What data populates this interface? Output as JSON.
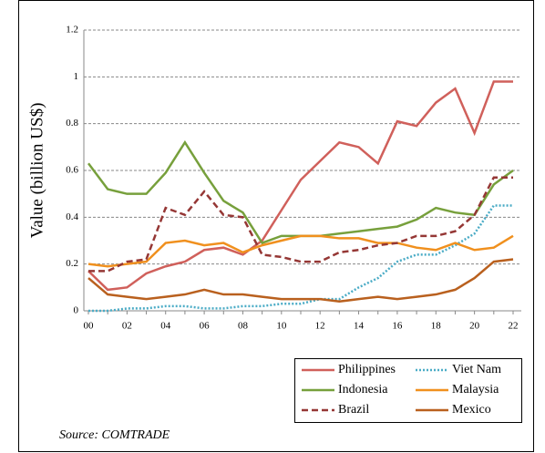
{
  "chart_data": {
    "type": "line",
    "y_label": "Value (billion US$)",
    "source": "Source: COMTRADE",
    "categories": [
      "00",
      null,
      "02",
      null,
      "04",
      null,
      "06",
      null,
      "08",
      null,
      "10",
      null,
      "12",
      null,
      "14",
      null,
      "16",
      null,
      "18",
      null,
      "20",
      null,
      "22"
    ],
    "series": [
      {
        "name": "Philippines",
        "color": "#d0605b",
        "dash": "solid",
        "values": [
          0.17,
          0.09,
          0.1,
          0.16,
          0.19,
          0.21,
          0.26,
          0.27,
          0.24,
          0.3,
          0.43,
          0.56,
          0.64,
          0.72,
          0.7,
          0.63,
          0.81,
          0.79,
          0.89,
          0.95,
          0.76,
          0.98,
          0.98
        ]
      },
      {
        "name": "Viet Nam",
        "color": "#4bacc6",
        "dash": "dotted",
        "values": [
          0.0,
          0.0,
          0.01,
          0.01,
          0.02,
          0.02,
          0.01,
          0.01,
          0.02,
          0.02,
          0.03,
          0.03,
          0.05,
          0.05,
          0.1,
          0.14,
          0.21,
          0.24,
          0.24,
          0.28,
          0.33,
          0.45,
          0.45
        ]
      },
      {
        "name": "Indonesia",
        "color": "#77a03c",
        "dash": "solid",
        "values": [
          0.63,
          0.52,
          0.5,
          0.5,
          0.59,
          0.72,
          0.59,
          0.47,
          0.42,
          0.29,
          0.32,
          0.32,
          0.32,
          0.33,
          0.34,
          0.35,
          0.36,
          0.39,
          0.44,
          0.42,
          0.41,
          0.54,
          0.6
        ]
      },
      {
        "name": "Malaysia",
        "color": "#f0901e",
        "dash": "solid",
        "values": [
          0.2,
          0.19,
          0.2,
          0.21,
          0.29,
          0.3,
          0.28,
          0.29,
          0.25,
          0.28,
          0.3,
          0.32,
          0.32,
          0.31,
          0.31,
          0.29,
          0.29,
          0.27,
          0.26,
          0.29,
          0.26,
          0.27,
          0.32
        ]
      },
      {
        "name": "Brazil",
        "color": "#953735",
        "dash": "dashed",
        "values": [
          0.17,
          0.17,
          0.21,
          0.22,
          0.44,
          0.41,
          0.51,
          0.41,
          0.4,
          0.24,
          0.23,
          0.21,
          0.21,
          0.25,
          0.26,
          0.28,
          0.29,
          0.32,
          0.32,
          0.34,
          0.41,
          0.57,
          0.57
        ]
      },
      {
        "name": "Mexico",
        "color": "#b9601e",
        "dash": "solid",
        "values": [
          0.14,
          0.07,
          0.06,
          0.05,
          0.06,
          0.07,
          0.09,
          0.07,
          0.07,
          0.06,
          0.05,
          0.05,
          0.05,
          0.04,
          0.05,
          0.06,
          0.05,
          0.06,
          0.07,
          0.09,
          0.14,
          0.21,
          0.22
        ]
      }
    ],
    "ylim": [
      0,
      1.2
    ],
    "yticks": [
      0,
      0.2,
      0.4,
      0.6,
      0.8,
      1,
      1.2
    ],
    "grid": true,
    "legend": "bottom-right"
  }
}
